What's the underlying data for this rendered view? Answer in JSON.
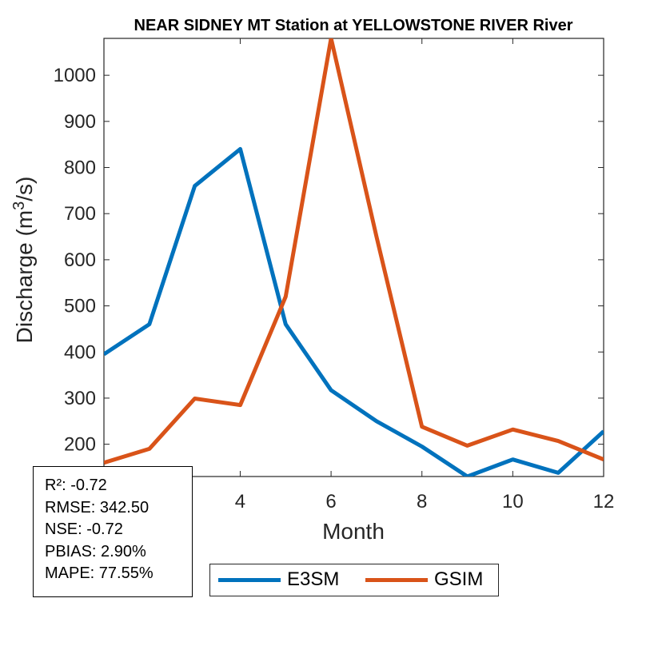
{
  "chart_data": {
    "type": "line",
    "title": "NEAR SIDNEY MT  Station at  YELLOWSTONE RIVER  River",
    "xlabel": "Month",
    "ylabel": "Discharge (m",
    "ylabel_sup": "3",
    "ylabel_end": "/s)",
    "xlim": [
      1,
      12
    ],
    "ylim": [
      130,
      1080
    ],
    "xticks": [
      4,
      6,
      8,
      10,
      12
    ],
    "yticks": [
      200,
      300,
      400,
      500,
      600,
      700,
      800,
      900,
      1000
    ],
    "grid": false,
    "legend_position": "bottom-outside",
    "x": [
      1,
      2,
      3,
      4,
      5,
      6,
      7,
      8,
      9,
      10,
      11,
      12
    ],
    "series": [
      {
        "name": "E3SM",
        "color": "#0072BD",
        "values": [
          395,
          460,
          760,
          840,
          460,
          317,
          250,
          195,
          130,
          167,
          138,
          228
        ]
      },
      {
        "name": "GSIM",
        "color": "#D95319",
        "values": [
          160,
          190,
          299,
          285,
          520,
          1080,
          650,
          238,
          197,
          232,
          207,
          167
        ]
      }
    ]
  },
  "stats": [
    "R²: -0.72",
    "RMSE: 342.50",
    "NSE: -0.72",
    "PBIAS: 2.90%",
    "MAPE: 77.55%"
  ]
}
